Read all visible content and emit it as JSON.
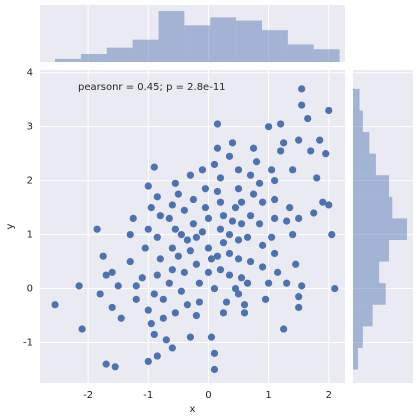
{
  "chart_data": [
    {
      "type": "scatter",
      "annotation": "pearsonr = 0.45; p = 2.8e-11",
      "x_label": "x",
      "y_label": "y",
      "color": "#4c72b0",
      "xlim": [
        -2.8,
        2.27
      ],
      "ylim": [
        -1.75,
        4.05
      ],
      "xticks": [
        -2,
        -1,
        0,
        1,
        2
      ],
      "yticks": [
        -1,
        0,
        1,
        2,
        3,
        4
      ],
      "grid": true,
      "x": [
        -2.55,
        -2.1,
        -2.15,
        -1.85,
        -1.7,
        -1.75,
        -1.6,
        -1.5,
        -1.8,
        -1.6,
        -1.45,
        -1.7,
        -1.55,
        -1.3,
        -1.25,
        -1.3,
        -1.2,
        -1.1,
        -1.2,
        -1.0,
        -1.05,
        -1.0,
        -0.95,
        -1.0,
        -0.9,
        -0.85,
        -0.8,
        -0.85,
        -0.8,
        -0.85,
        -0.9,
        -0.75,
        -0.75,
        -0.95,
        -1.0,
        -0.85,
        -0.9,
        -0.7,
        -0.65,
        -0.6,
        -0.6,
        -0.55,
        -0.65,
        -0.6,
        -0.55,
        -0.5,
        -0.4,
        -0.45,
        -0.5,
        -0.4,
        -0.45,
        -0.35,
        -0.55,
        -0.6,
        -0.3,
        -0.3,
        -0.25,
        -0.25,
        -0.2,
        -0.3,
        -0.2,
        -0.15,
        -0.15,
        -0.2,
        -0.1,
        -0.05,
        -0.05,
        0.0,
        -0.1,
        0.0,
        0.05,
        0.0,
        0.1,
        0.05,
        0.1,
        0.1,
        0.15,
        0.15,
        0.1,
        0.2,
        0.15,
        0.2,
        0.25,
        0.2,
        0.25,
        0.15,
        0.2,
        0.25,
        0.3,
        0.35,
        0.35,
        0.35,
        0.4,
        0.45,
        0.35,
        0.4,
        0.5,
        0.5,
        0.55,
        0.55,
        0.5,
        0.5,
        0.55,
        0.5,
        0.6,
        0.6,
        0.65,
        0.7,
        0.65,
        0.7,
        0.75,
        0.7,
        0.75,
        0.8,
        0.85,
        0.9,
        0.85,
        0.9,
        0.9,
        1.0,
        0.95,
        1.0,
        1.05,
        1.1,
        1.1,
        1.1,
        1.05,
        1.1,
        1.15,
        1.2,
        1.2,
        1.25,
        1.25,
        1.3,
        1.35,
        1.4,
        1.4,
        1.5,
        1.55,
        1.5,
        1.55,
        1.45,
        1.5,
        1.5,
        1.65,
        1.7,
        1.75,
        1.8,
        1.85,
        1.9,
        1.95,
        2.0,
        2.0,
        2.05,
        2.1,
        1.55,
        1.3,
        0.45,
        -0.35
      ],
      "y": [
        -0.3,
        -0.75,
        0.05,
        1.1,
        0.25,
        0.6,
        0.3,
        0.05,
        -0.1,
        -0.35,
        -0.55,
        -1.4,
        -1.45,
        1.0,
        1.3,
        0.5,
        0.05,
        0.2,
        -0.2,
        -0.4,
        0.75,
        1.1,
        1.5,
        1.9,
        2.25,
        1.7,
        1.35,
        0.95,
        0.55,
        0.25,
        -0.1,
        -0.2,
        -0.55,
        -0.65,
        -1.35,
        -1.25,
        -0.85,
        -0.95,
        0.1,
        0.35,
        0.75,
        1.1,
        1.3,
        1.55,
        1.95,
        1.75,
        1.45,
        1.0,
        0.6,
        0.3,
        -0.05,
        -0.3,
        -0.45,
        -1.1,
        -0.9,
        2.1,
        1.65,
        1.2,
        0.95,
        0.7,
        0.45,
        0.1,
        -0.25,
        -0.5,
        2.2,
        1.85,
        1.5,
        1.3,
        1.05,
        0.75,
        0.55,
        0.3,
        0.0,
        -0.9,
        -1.2,
        -1.5,
        3.05,
        2.6,
        2.3,
        2.05,
        1.8,
        1.6,
        1.35,
        1.1,
        0.85,
        0.6,
        0.35,
        -0.45,
        -0.25,
        0.25,
        0.65,
        1.0,
        1.25,
        1.5,
        2.45,
        2.7,
        2.2,
        1.85,
        1.6,
        1.2,
        0.9,
        0.55,
        0.2,
        -0.1,
        -0.3,
        -0.45,
        0.1,
        0.5,
        0.95,
        1.35,
        1.75,
        2.1,
        2.6,
        2.35,
        1.95,
        1.6,
        1.2,
        0.8,
        0.4,
        0.1,
        -0.2,
        3.0,
        2.2,
        2.0,
        1.65,
        1.3,
        0.95,
        0.65,
        0.3,
        2.55,
        3.05,
        2.7,
        -0.75,
        0.1,
        1.5,
        1.0,
        2.2,
        2.75,
        3.4,
        1.3,
        0.05,
        0.45,
        -0.15,
        -0.35,
        3.15,
        2.55,
        1.4,
        2.05,
        2.75,
        1.6,
        2.5,
        1.55,
        3.3,
        1.0,
        0.0,
        3.7,
        1.25,
        0.0,
        0.9
      ]
    },
    {
      "type": "histogram",
      "orientation": "vertical",
      "color": "#4c72b0",
      "bins": [
        -2.55,
        -2.12,
        -1.69,
        -1.26,
        -0.83,
        -0.4,
        0.03,
        0.46,
        0.89,
        1.32,
        1.75,
        2.18
      ],
      "values": [
        2,
        5,
        9,
        14,
        32,
        23,
        28,
        26,
        20,
        11,
        8
      ]
    },
    {
      "type": "histogram",
      "orientation": "horizontal",
      "color": "#4c72b0",
      "bins": [
        -1.5,
        -1.1,
        -0.7,
        -0.3,
        0.1,
        0.5,
        0.9,
        1.3,
        1.7,
        2.1,
        2.5,
        2.9,
        3.3,
        3.7
      ],
      "values": [
        3,
        6,
        12,
        20,
        16,
        22,
        33,
        24,
        22,
        14,
        10,
        6,
        4
      ]
    }
  ]
}
